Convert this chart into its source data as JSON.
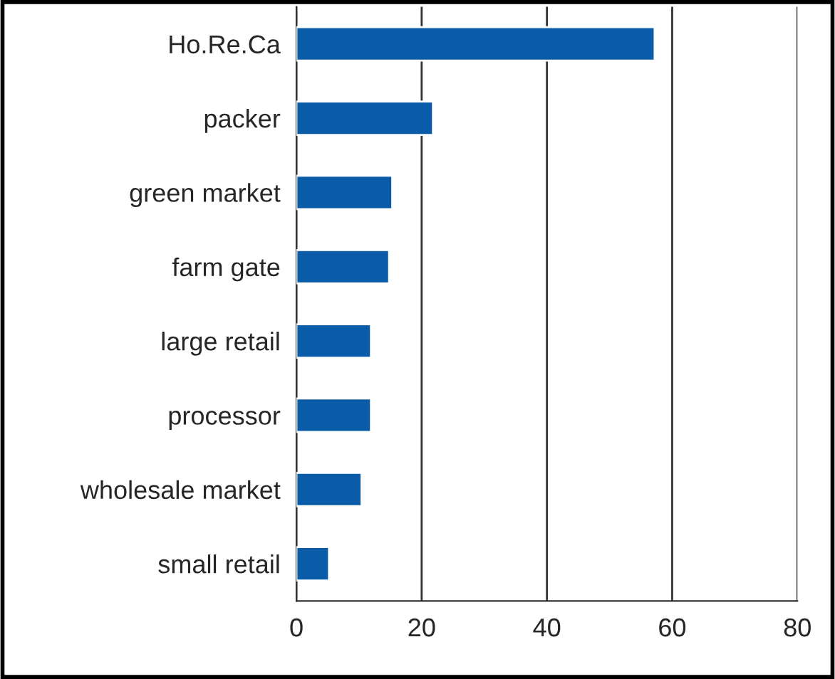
{
  "chart_data": {
    "type": "bar",
    "orientation": "horizontal",
    "categories": [
      "Ho.Re.Ca",
      "packer",
      "green market",
      "farm gate",
      "large retail",
      "processor",
      "wholesale market",
      "small retail"
    ],
    "values": [
      57.2,
      21.8,
      15.3,
      14.8,
      11.9,
      11.9,
      10.4,
      5.2
    ],
    "color": "#0b5ca8",
    "xlim": [
      0,
      80
    ],
    "xticks": [
      0,
      20,
      40,
      60,
      80
    ],
    "grid": "x"
  }
}
